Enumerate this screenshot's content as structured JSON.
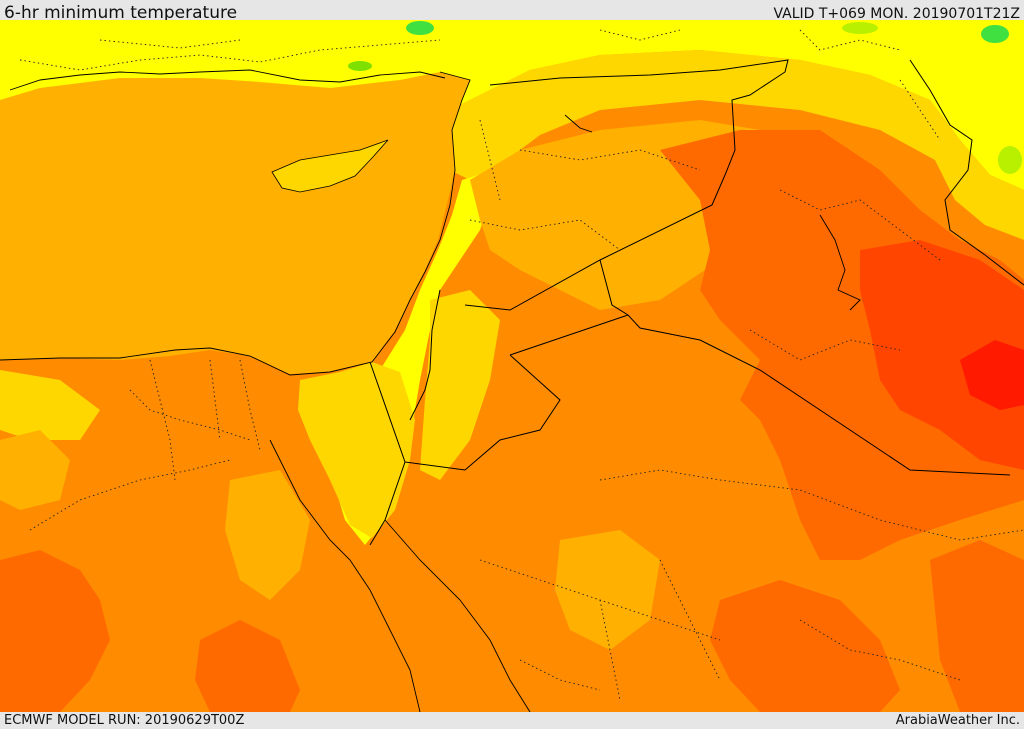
{
  "header": {
    "title": "6-hr minimum temperature",
    "valid": "VALID T+069 MON. 20190701T21Z"
  },
  "footer": {
    "model_run": "ECMWF MODEL RUN: 20190629T00Z",
    "credit": "ArabiaWeather Inc."
  },
  "map": {
    "palette": {
      "green": "#3fe03f",
      "yellow_green": "#b8f000",
      "yellow": "#ffff00",
      "gold": "#ffd700",
      "amber": "#ffb000",
      "orange": "#ff8c00",
      "dark_orange": "#ff6a00",
      "red_orange": "#ff4500",
      "red": "#ff1a00"
    },
    "border_color": "#000000"
  }
}
